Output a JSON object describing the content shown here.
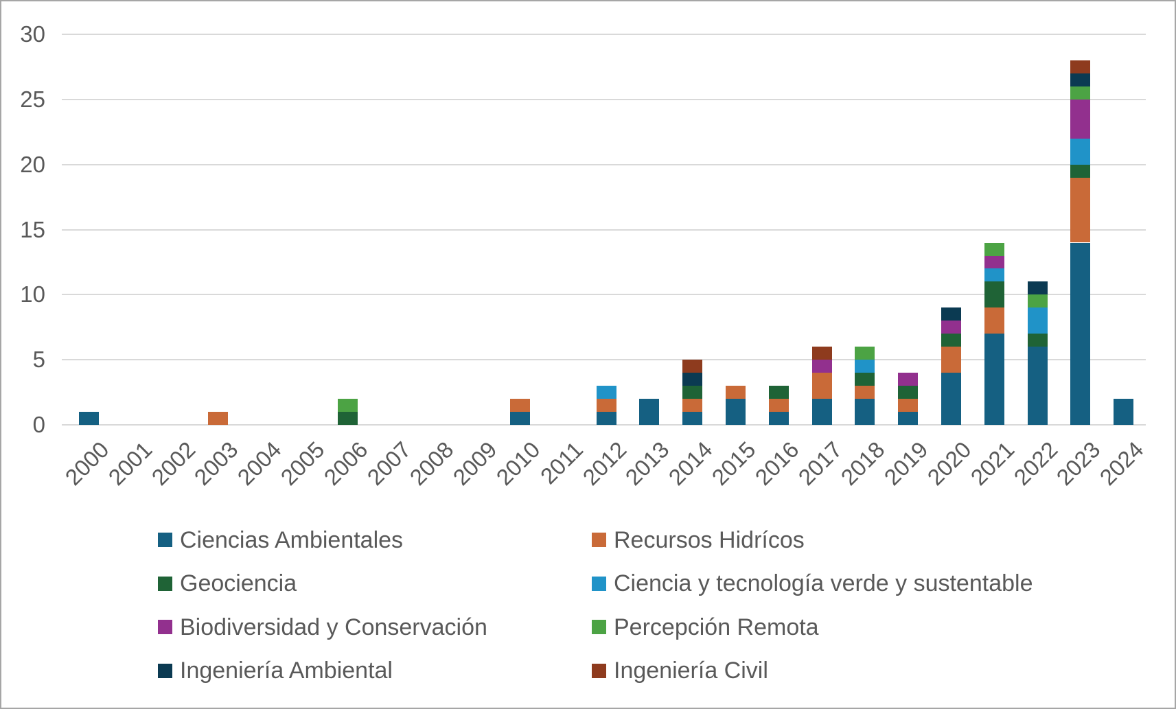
{
  "chart_data": {
    "type": "bar",
    "stacked": true,
    "title": "",
    "xlabel": "",
    "ylabel": "",
    "categories": [
      "2000",
      "2001",
      "2002",
      "2003",
      "2004",
      "2005",
      "2006",
      "2007",
      "2008",
      "2009",
      "2010",
      "2011",
      "2012",
      "2013",
      "2014",
      "2015",
      "2016",
      "2017",
      "2018",
      "2019",
      "2020",
      "2021",
      "2022",
      "2023",
      "2024"
    ],
    "series": [
      {
        "name": "Ciencias Ambientales",
        "color": "#156082",
        "values": [
          1,
          0,
          0,
          0,
          0,
          0,
          0,
          0,
          0,
          0,
          1,
          0,
          1,
          2,
          1,
          2,
          1,
          2,
          2,
          1,
          4,
          7,
          6,
          14,
          2
        ]
      },
      {
        "name": "Recursos Hidrícos",
        "color": "#C96A38",
        "values": [
          0,
          0,
          0,
          1,
          0,
          0,
          0,
          0,
          0,
          0,
          1,
          0,
          1,
          0,
          1,
          1,
          1,
          2,
          1,
          1,
          2,
          2,
          0,
          5,
          0
        ]
      },
      {
        "name": "Geociencia",
        "color": "#1F6336",
        "values": [
          0,
          0,
          0,
          0,
          0,
          0,
          1,
          0,
          0,
          0,
          0,
          0,
          0,
          0,
          1,
          0,
          1,
          0,
          1,
          1,
          1,
          2,
          1,
          1,
          0
        ]
      },
      {
        "name": "Ciencia y tecnología verde y sustentable",
        "color": "#2093C8",
        "values": [
          0,
          0,
          0,
          0,
          0,
          0,
          0,
          0,
          0,
          0,
          0,
          0,
          1,
          0,
          0,
          0,
          0,
          0,
          1,
          0,
          0,
          1,
          2,
          2,
          0
        ]
      },
      {
        "name": "Biodiversidad y Conservación",
        "color": "#92308E",
        "values": [
          0,
          0,
          0,
          0,
          0,
          0,
          0,
          0,
          0,
          0,
          0,
          0,
          0,
          0,
          0,
          0,
          0,
          1,
          0,
          1,
          1,
          1,
          0,
          3,
          0
        ]
      },
      {
        "name": "Percepción Remota",
        "color": "#4CA344",
        "values": [
          0,
          0,
          0,
          0,
          0,
          0,
          1,
          0,
          0,
          0,
          0,
          0,
          0,
          0,
          0,
          0,
          0,
          0,
          1,
          0,
          0,
          1,
          1,
          1,
          0
        ]
      },
      {
        "name": "Ingeniería Ambiental",
        "color": "#0B3A52",
        "values": [
          0,
          0,
          0,
          0,
          0,
          0,
          0,
          0,
          0,
          0,
          0,
          0,
          0,
          0,
          1,
          0,
          0,
          0,
          0,
          0,
          1,
          0,
          1,
          1,
          0
        ]
      },
      {
        "name": "Ingeniería Civil",
        "color": "#8E3B1E",
        "values": [
          0,
          0,
          0,
          0,
          0,
          0,
          0,
          0,
          0,
          0,
          0,
          0,
          0,
          0,
          1,
          0,
          0,
          1,
          0,
          0,
          0,
          0,
          0,
          1,
          0
        ]
      }
    ],
    "totals_by_year": [
      1,
      0,
      0,
      1,
      0,
      0,
      2,
      0,
      0,
      0,
      2,
      0,
      3,
      2,
      5,
      3,
      3,
      6,
      6,
      4,
      9,
      14,
      11,
      28,
      2
    ],
    "ylim": [
      0,
      30
    ],
    "yticks": [
      0,
      5,
      10,
      15,
      20,
      25,
      30
    ],
    "grid": true,
    "legend_position": "bottom",
    "legend_columns": 2
  },
  "theme": {
    "grid_color": "#D9D9D9",
    "axis_label_color": "#595959",
    "legend_text_color": "#595959",
    "frame_border_color": "#A6A6A6",
    "background": "#FFFFFF"
  }
}
